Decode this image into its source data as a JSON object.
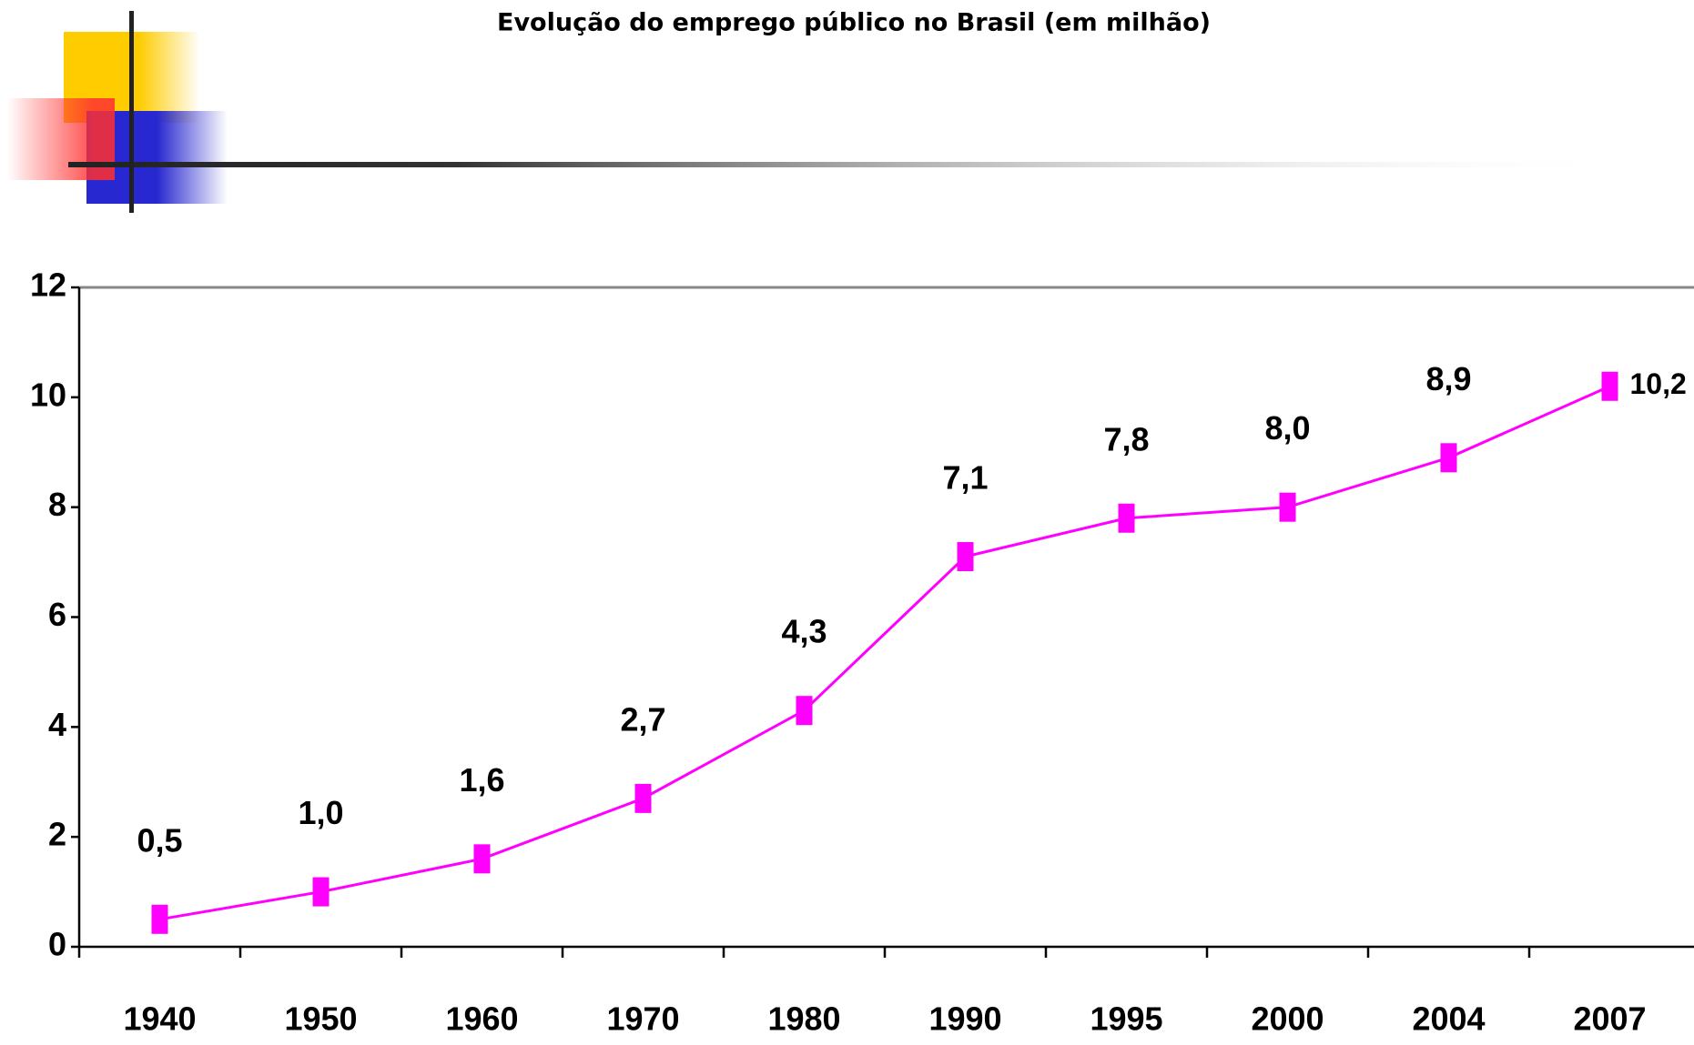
{
  "chart_data": {
    "type": "line",
    "title": "Evolução do emprego público no Brasil (em milhão)",
    "categories": [
      "1940",
      "1950",
      "1960",
      "1970",
      "1980",
      "1990",
      "1995",
      "2000",
      "2004",
      "2007"
    ],
    "series": [
      {
        "color": "#ff00ff",
        "values": [
          0.5,
          1.0,
          1.6,
          2.7,
          4.3,
          7.1,
          7.8,
          8.0,
          8.9,
          10.2
        ],
        "value_labels": [
          "0,5",
          "1,0",
          "1,6",
          "2,7",
          "4,3",
          "7,1",
          "7,8",
          "8,0",
          "8,9",
          "10,2"
        ]
      }
    ],
    "ylim": [
      0,
      12
    ],
    "yticks": [
      0,
      2,
      4,
      6,
      8,
      10,
      12
    ],
    "grid": false
  }
}
